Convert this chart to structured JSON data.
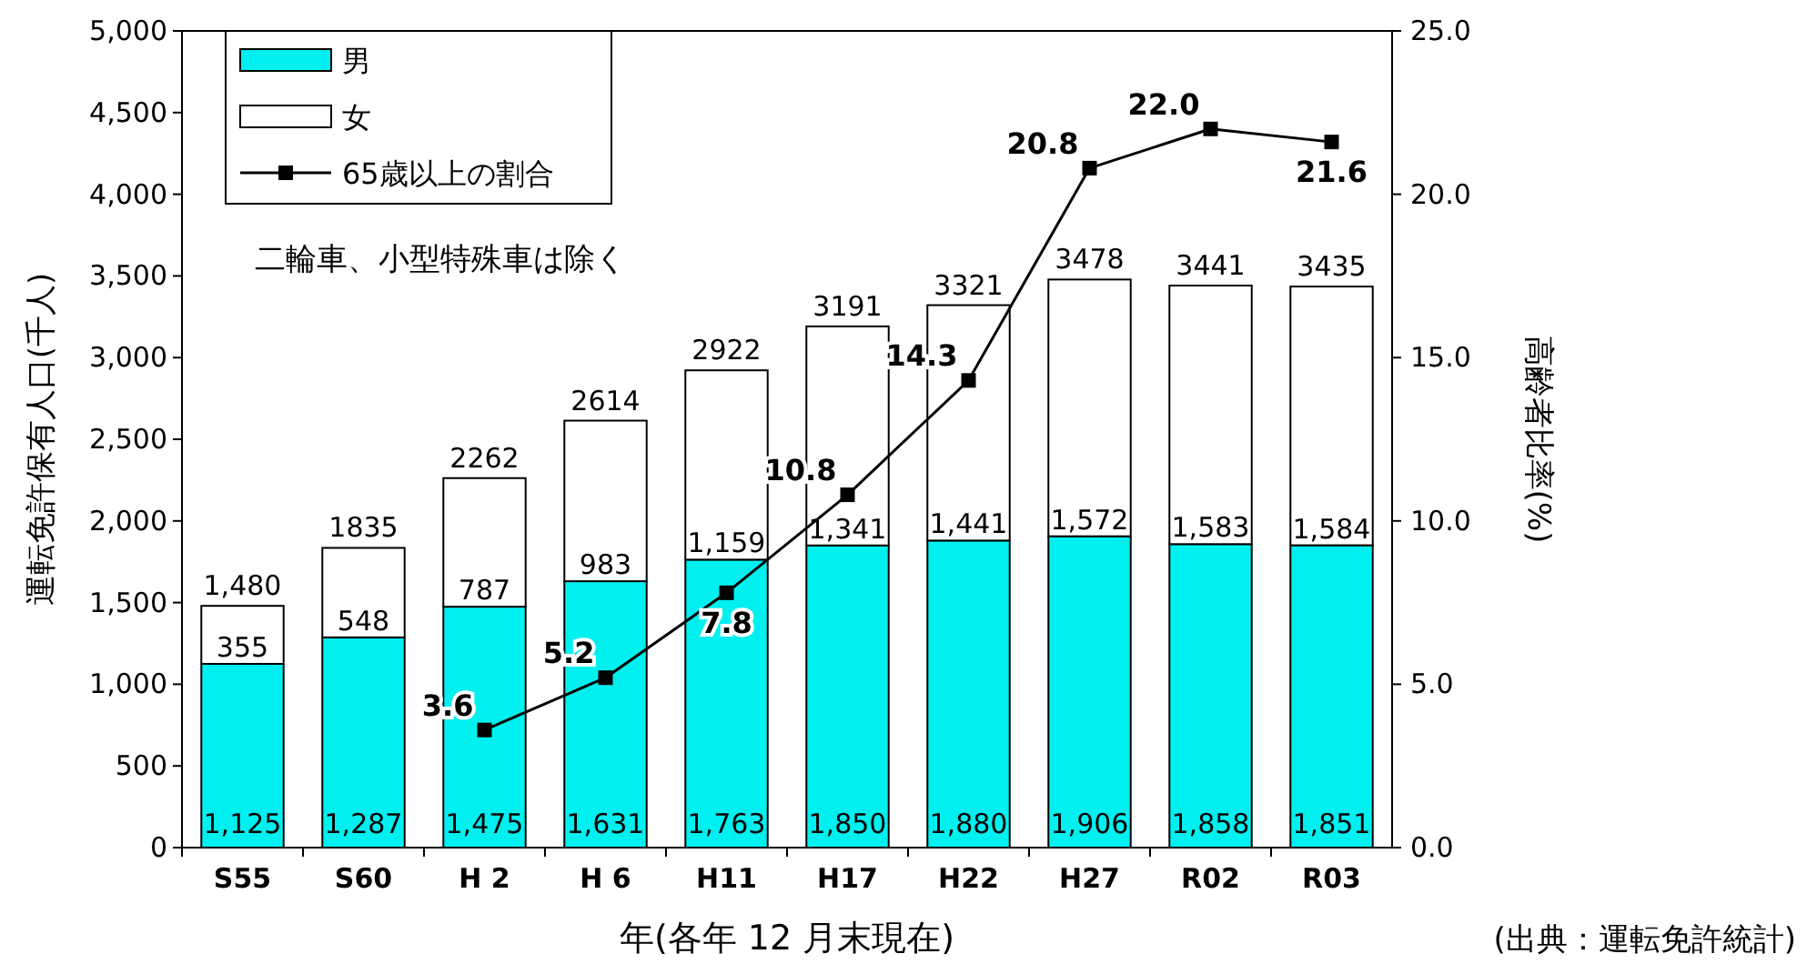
{
  "chart_data": {
    "type": "bar",
    "stacked": true,
    "grid": false,
    "legend": "top left",
    "marker": "square",
    "categories": [
      "S55",
      "S60",
      "H 2",
      "H 6",
      "H11",
      "H17",
      "H22",
      "H27",
      "R02",
      "R03"
    ],
    "series": [
      {
        "name": "男",
        "color": "#00f0f0",
        "values": [
          1125,
          1287,
          1475,
          1631,
          1763,
          1850,
          1880,
          1906,
          1858,
          1851
        ],
        "value_labels": [
          "1,125",
          "1,287",
          "1,475",
          "1,631",
          "1,763",
          "1,850",
          "1,880",
          "1,906",
          "1,858",
          "1,851"
        ]
      },
      {
        "name": "女",
        "color": "#ffffff",
        "values": [
          355,
          548,
          787,
          983,
          1159,
          1341,
          1441,
          1572,
          1583,
          1584
        ],
        "value_labels": [
          "355",
          "548",
          "787",
          "983",
          "1,159",
          "1,341",
          "1,441",
          "1,572",
          "1,583",
          "1,584"
        ]
      },
      {
        "name": "65歳以上の割合",
        "type": "line",
        "axis": "y2",
        "color": "#000000",
        "values": [
          null,
          null,
          3.6,
          5.2,
          7.8,
          10.8,
          14.3,
          20.8,
          22.0,
          21.6
        ],
        "value_labels": [
          null,
          null,
          "3.6",
          "5.2",
          "7.8",
          "10.8",
          "14.3",
          "20.8",
          "22.0",
          "21.6"
        ]
      }
    ],
    "totals": [
      "1,480",
      "1835",
      "2262",
      "2614",
      "2922",
      "3191",
      "3321",
      "3478",
      "3441",
      "3435"
    ],
    "ylim": [
      0,
      5000
    ],
    "yticks": [
      {
        "value": 0,
        "label": "0"
      },
      {
        "value": 500,
        "label": "500"
      },
      {
        "value": 1000,
        "label": "1,000"
      },
      {
        "value": 1500,
        "label": "1,500"
      },
      {
        "value": 2000,
        "label": "2,000"
      },
      {
        "value": 2500,
        "label": "2,500"
      },
      {
        "value": 3000,
        "label": "3,000"
      },
      {
        "value": 3500,
        "label": "3,500"
      },
      {
        "value": 4000,
        "label": "4,000"
      },
      {
        "value": 4500,
        "label": "4,500"
      },
      {
        "value": 5000,
        "label": "5,000"
      }
    ],
    "y2lim": [
      0,
      25
    ],
    "y2ticks": [
      {
        "value": 0,
        "label": "0.0"
      },
      {
        "value": 5,
        "label": "5.0"
      },
      {
        "value": 10,
        "label": "10.0"
      },
      {
        "value": 15,
        "label": "15.0"
      },
      {
        "value": 20,
        "label": "20.0"
      },
      {
        "value": 25,
        "label": "25.0"
      }
    ],
    "xlabel": "年(各年 12 月末現在)",
    "ylabel": "運転免許保有人口(千人)",
    "y2label": "高齢者比率(%)",
    "annotations": [
      "二輪車、小型特殊車は除く",
      "(出典：運転免許統計)"
    ]
  }
}
